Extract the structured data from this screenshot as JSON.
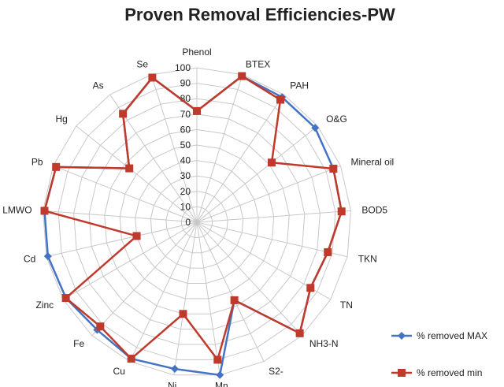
{
  "chart_data": {
    "type": "radar",
    "title": "Proven Removal Efficiencies-PW",
    "categories": [
      "Phenol",
      "BTEX",
      "PAH",
      "O&G",
      "Mineral oil",
      "BOD5",
      "TKN",
      "TN",
      "NH3-N",
      "S2-",
      "Mn",
      "Ni",
      "Cu",
      "Fe",
      "Zinc",
      "Cd",
      "LMWO",
      "Pb",
      "Hg",
      "As",
      "Se"
    ],
    "rlim": [
      0,
      100
    ],
    "rticks": [
      0,
      10,
      20,
      30,
      40,
      50,
      60,
      70,
      80,
      90,
      100
    ],
    "grid": true,
    "legend_position": "bottom-right",
    "series": [
      {
        "name": "% removed MAX",
        "color": "#4472C4",
        "marker": "diamond",
        "values": [
          72,
          99,
          98,
          98,
          95,
          94,
          87,
          85,
          98,
          56,
          100,
          96,
          98,
          95,
          98,
          99,
          99,
          98,
          56,
          85,
          98
        ]
      },
      {
        "name": "% removed min",
        "color": "#C0392B",
        "marker": "square",
        "values": [
          72,
          99,
          96,
          62,
          95,
          94,
          87,
          85,
          98,
          56,
          90,
          60,
          98,
          92,
          98,
          40,
          99,
          98,
          56,
          85,
          98
        ]
      }
    ]
  }
}
